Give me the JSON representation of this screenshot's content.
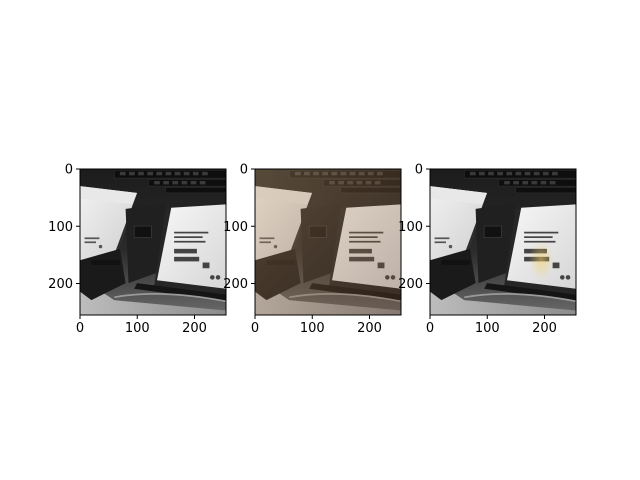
{
  "chart_data": [
    {
      "type": "image",
      "content": "grayscale photo: two 3.5-inch hard disk drives in a drive bay",
      "xlim": [
        0,
        255
      ],
      "ylim": [
        255,
        0
      ],
      "xticks": [
        0,
        100,
        200
      ],
      "yticks": [
        0,
        100,
        200
      ]
    },
    {
      "type": "image",
      "content": "color photo (warm/brown tint): same hard disk drives",
      "xlim": [
        0,
        255
      ],
      "ylim": [
        255,
        0
      ],
      "xticks": [
        0,
        100,
        200
      ],
      "yticks": [
        0,
        100,
        200
      ]
    },
    {
      "type": "image",
      "content": "grayscale photo with faint yellow-tinted region on the right drive label",
      "xlim": [
        0,
        255
      ],
      "ylim": [
        255,
        0
      ],
      "xticks": [
        0,
        100,
        200
      ],
      "yticks": [
        0,
        100,
        200
      ]
    }
  ],
  "colors": {
    "axis": "#000000",
    "background": "#ffffff"
  }
}
